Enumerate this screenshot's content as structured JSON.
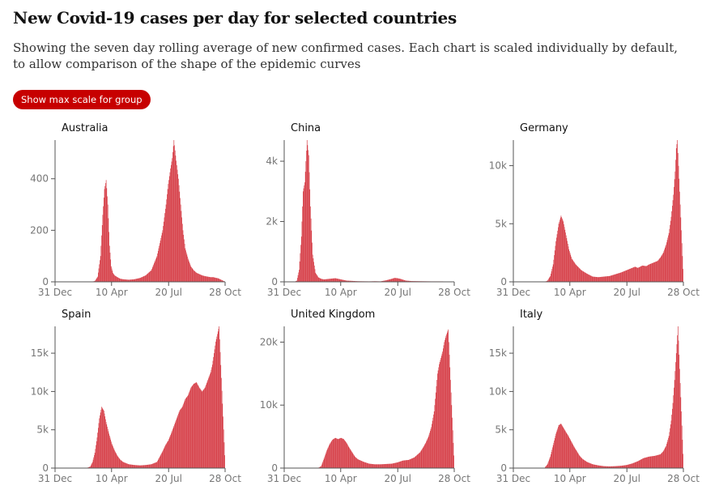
{
  "title": "New Covid-19 cases per day for selected countries",
  "subtitle": "Showing the seven day rolling average of new confirmed cases. Each chart is scaled individually by default, to allow comparison of the shape of the epidemic curves",
  "toggle_button_label": "Show max scale for group",
  "bar_color": "#d3303a",
  "axis_color": "#555555",
  "x_tick_labels": [
    "31 Dec",
    "10 Apr",
    "20 Jul",
    "28 Oct"
  ],
  "chart_data": [
    {
      "type": "bar",
      "title": "Australia",
      "x_range": [
        "31 Dec",
        "28 Oct"
      ],
      "ylim": [
        0,
        550
      ],
      "y_ticks": [
        0,
        200,
        400
      ],
      "y_tick_labels": [
        "0",
        "200",
        "400"
      ],
      "series_points": [
        [
          0,
          0
        ],
        [
          55,
          0
        ],
        [
          65,
          1
        ],
        [
          70,
          3
        ],
        [
          75,
          20
        ],
        [
          80,
          100
        ],
        [
          84,
          260
        ],
        [
          87,
          360
        ],
        [
          90,
          395
        ],
        [
          93,
          300
        ],
        [
          96,
          140
        ],
        [
          99,
          60
        ],
        [
          102,
          35
        ],
        [
          105,
          25
        ],
        [
          110,
          18
        ],
        [
          115,
          12
        ],
        [
          120,
          10
        ],
        [
          130,
          8
        ],
        [
          140,
          10
        ],
        [
          150,
          15
        ],
        [
          160,
          25
        ],
        [
          170,
          45
        ],
        [
          180,
          100
        ],
        [
          190,
          200
        ],
        [
          196,
          300
        ],
        [
          200,
          380
        ],
        [
          204,
          440
        ],
        [
          207,
          480
        ],
        [
          210,
          550
        ],
        [
          214,
          470
        ],
        [
          218,
          400
        ],
        [
          222,
          300
        ],
        [
          226,
          200
        ],
        [
          230,
          130
        ],
        [
          235,
          90
        ],
        [
          240,
          60
        ],
        [
          245,
          45
        ],
        [
          250,
          35
        ],
        [
          255,
          30
        ],
        [
          260,
          25
        ],
        [
          265,
          22
        ],
        [
          270,
          20
        ],
        [
          275,
          18
        ],
        [
          280,
          18
        ],
        [
          285,
          15
        ],
        [
          288,
          14
        ],
        [
          301,
          0
        ]
      ]
    },
    {
      "type": "bar",
      "title": "China",
      "x_range": [
        "31 Dec",
        "28 Oct"
      ],
      "ylim": [
        0,
        4700
      ],
      "y_ticks": [
        0,
        2000,
        4000
      ],
      "y_tick_labels": [
        "0",
        "2k",
        "4k"
      ],
      "series_points": [
        [
          0,
          0
        ],
        [
          18,
          5
        ],
        [
          22,
          40
        ],
        [
          26,
          400
        ],
        [
          30,
          1500
        ],
        [
          33,
          3000
        ],
        [
          36,
          3300
        ],
        [
          38,
          4000
        ],
        [
          40,
          4700
        ],
        [
          43,
          4200
        ],
        [
          46,
          2500
        ],
        [
          50,
          900
        ],
        [
          55,
          300
        ],
        [
          60,
          150
        ],
        [
          65,
          100
        ],
        [
          70,
          80
        ],
        [
          80,
          100
        ],
        [
          90,
          120
        ],
        [
          100,
          80
        ],
        [
          110,
          40
        ],
        [
          120,
          30
        ],
        [
          130,
          20
        ],
        [
          150,
          15
        ],
        [
          160,
          20
        ],
        [
          170,
          15
        ],
        [
          180,
          50
        ],
        [
          190,
          100
        ],
        [
          195,
          130
        ],
        [
          200,
          120
        ],
        [
          205,
          100
        ],
        [
          210,
          70
        ],
        [
          215,
          40
        ],
        [
          225,
          25
        ],
        [
          240,
          20
        ],
        [
          260,
          15
        ],
        [
          280,
          15
        ],
        [
          301,
          0
        ]
      ]
    },
    {
      "type": "bar",
      "title": "Germany",
      "x_range": [
        "31 Dec",
        "28 Oct"
      ],
      "ylim": [
        0,
        12200
      ],
      "y_ticks": [
        0,
        5000,
        10000
      ],
      "y_tick_labels": [
        "0",
        "5k",
        "10k"
      ],
      "series_points": [
        [
          0,
          0
        ],
        [
          55,
          0
        ],
        [
          60,
          100
        ],
        [
          65,
          500
        ],
        [
          70,
          1500
        ],
        [
          75,
          3500
        ],
        [
          80,
          5000
        ],
        [
          84,
          5700
        ],
        [
          88,
          5200
        ],
        [
          93,
          4000
        ],
        [
          98,
          2800
        ],
        [
          103,
          2000
        ],
        [
          110,
          1500
        ],
        [
          120,
          1000
        ],
        [
          130,
          700
        ],
        [
          140,
          450
        ],
        [
          150,
          400
        ],
        [
          160,
          450
        ],
        [
          170,
          500
        ],
        [
          180,
          650
        ],
        [
          190,
          800
        ],
        [
          200,
          1000
        ],
        [
          210,
          1200
        ],
        [
          215,
          1300
        ],
        [
          220,
          1200
        ],
        [
          228,
          1400
        ],
        [
          235,
          1350
        ],
        [
          240,
          1500
        ],
        [
          245,
          1600
        ],
        [
          250,
          1700
        ],
        [
          255,
          1800
        ],
        [
          260,
          2100
        ],
        [
          265,
          2500
        ],
        [
          270,
          3200
        ],
        [
          275,
          4200
        ],
        [
          279,
          5600
        ],
        [
          283,
          7500
        ],
        [
          286,
          9500
        ],
        [
          288,
          11500
        ],
        [
          290,
          12200
        ],
        [
          301,
          0
        ]
      ]
    },
    {
      "type": "bar",
      "title": "Spain",
      "x_range": [
        "31 Dec",
        "28 Oct"
      ],
      "ylim": [
        0,
        18500
      ],
      "y_ticks": [
        0,
        5000,
        10000,
        15000
      ],
      "y_tick_labels": [
        "0",
        "5k",
        "10k",
        "15k"
      ],
      "series_points": [
        [
          0,
          0
        ],
        [
          55,
          0
        ],
        [
          62,
          200
        ],
        [
          66,
          800
        ],
        [
          70,
          2000
        ],
        [
          74,
          4000
        ],
        [
          78,
          6500
        ],
        [
          82,
          8000
        ],
        [
          86,
          7500
        ],
        [
          90,
          6000
        ],
        [
          95,
          4500
        ],
        [
          100,
          3200
        ],
        [
          105,
          2300
        ],
        [
          110,
          1600
        ],
        [
          115,
          1100
        ],
        [
          120,
          800
        ],
        [
          130,
          500
        ],
        [
          140,
          400
        ],
        [
          150,
          350
        ],
        [
          160,
          400
        ],
        [
          170,
          500
        ],
        [
          180,
          800
        ],
        [
          185,
          1500
        ],
        [
          190,
          2200
        ],
        [
          195,
          3000
        ],
        [
          200,
          3600
        ],
        [
          205,
          4500
        ],
        [
          210,
          5500
        ],
        [
          215,
          6500
        ],
        [
          220,
          7500
        ],
        [
          225,
          8000
        ],
        [
          230,
          9000
        ],
        [
          235,
          9500
        ],
        [
          240,
          10500
        ],
        [
          245,
          11000
        ],
        [
          250,
          11200
        ],
        [
          255,
          10500
        ],
        [
          260,
          10000
        ],
        [
          265,
          10500
        ],
        [
          270,
          11500
        ],
        [
          275,
          12500
        ],
        [
          278,
          13500
        ],
        [
          281,
          15000
        ],
        [
          284,
          16500
        ],
        [
          287,
          17500
        ],
        [
          290,
          18500
        ],
        [
          301,
          0
        ]
      ]
    },
    {
      "type": "bar",
      "title": "United Kingdom",
      "x_range": [
        "31 Dec",
        "28 Oct"
      ],
      "ylim": [
        0,
        22500
      ],
      "y_ticks": [
        0,
        10000,
        20000
      ],
      "y_tick_labels": [
        "0",
        "10k",
        "20k"
      ],
      "series_points": [
        [
          0,
          0
        ],
        [
          55,
          0
        ],
        [
          60,
          50
        ],
        [
          65,
          300
        ],
        [
          70,
          1500
        ],
        [
          75,
          2800
        ],
        [
          80,
          3800
        ],
        [
          85,
          4500
        ],
        [
          90,
          4800
        ],
        [
          95,
          4600
        ],
        [
          100,
          4800
        ],
        [
          105,
          4600
        ],
        [
          110,
          4000
        ],
        [
          115,
          3200
        ],
        [
          120,
          2500
        ],
        [
          125,
          1800
        ],
        [
          130,
          1400
        ],
        [
          140,
          1000
        ],
        [
          150,
          700
        ],
        [
          160,
          600
        ],
        [
          170,
          600
        ],
        [
          180,
          650
        ],
        [
          190,
          700
        ],
        [
          200,
          900
        ],
        [
          210,
          1200
        ],
        [
          220,
          1300
        ],
        [
          230,
          1700
        ],
        [
          240,
          2500
        ],
        [
          245,
          3200
        ],
        [
          250,
          4000
        ],
        [
          255,
          5000
        ],
        [
          260,
          6500
        ],
        [
          265,
          9000
        ],
        [
          268,
          12000
        ],
        [
          271,
          15000
        ],
        [
          274,
          16500
        ],
        [
          277,
          17500
        ],
        [
          280,
          18500
        ],
        [
          283,
          20000
        ],
        [
          286,
          21000
        ],
        [
          290,
          22000
        ],
        [
          301,
          0
        ]
      ]
    },
    {
      "type": "bar",
      "title": "Italy",
      "x_range": [
        "31 Dec",
        "28 Oct"
      ],
      "ylim": [
        0,
        18500
      ],
      "y_ticks": [
        0,
        5000,
        10000,
        15000
      ],
      "y_tick_labels": [
        "0",
        "5k",
        "10k",
        "15k"
      ],
      "series_points": [
        [
          0,
          0
        ],
        [
          50,
          0
        ],
        [
          55,
          50
        ],
        [
          60,
          500
        ],
        [
          65,
          1500
        ],
        [
          70,
          3000
        ],
        [
          75,
          4500
        ],
        [
          80,
          5600
        ],
        [
          84,
          5800
        ],
        [
          88,
          5300
        ],
        [
          92,
          4800
        ],
        [
          97,
          4200
        ],
        [
          102,
          3500
        ],
        [
          107,
          2800
        ],
        [
          112,
          2200
        ],
        [
          117,
          1600
        ],
        [
          122,
          1200
        ],
        [
          130,
          800
        ],
        [
          140,
          500
        ],
        [
          150,
          350
        ],
        [
          160,
          250
        ],
        [
          170,
          220
        ],
        [
          180,
          250
        ],
        [
          190,
          300
        ],
        [
          200,
          400
        ],
        [
          210,
          600
        ],
        [
          220,
          900
        ],
        [
          230,
          1300
        ],
        [
          240,
          1500
        ],
        [
          250,
          1600
        ],
        [
          260,
          1800
        ],
        [
          265,
          2200
        ],
        [
          270,
          2900
        ],
        [
          275,
          4200
        ],
        [
          279,
          6200
        ],
        [
          282,
          8500
        ],
        [
          285,
          11500
        ],
        [
          288,
          15000
        ],
        [
          291,
          18500
        ],
        [
          301,
          0
        ]
      ]
    }
  ]
}
